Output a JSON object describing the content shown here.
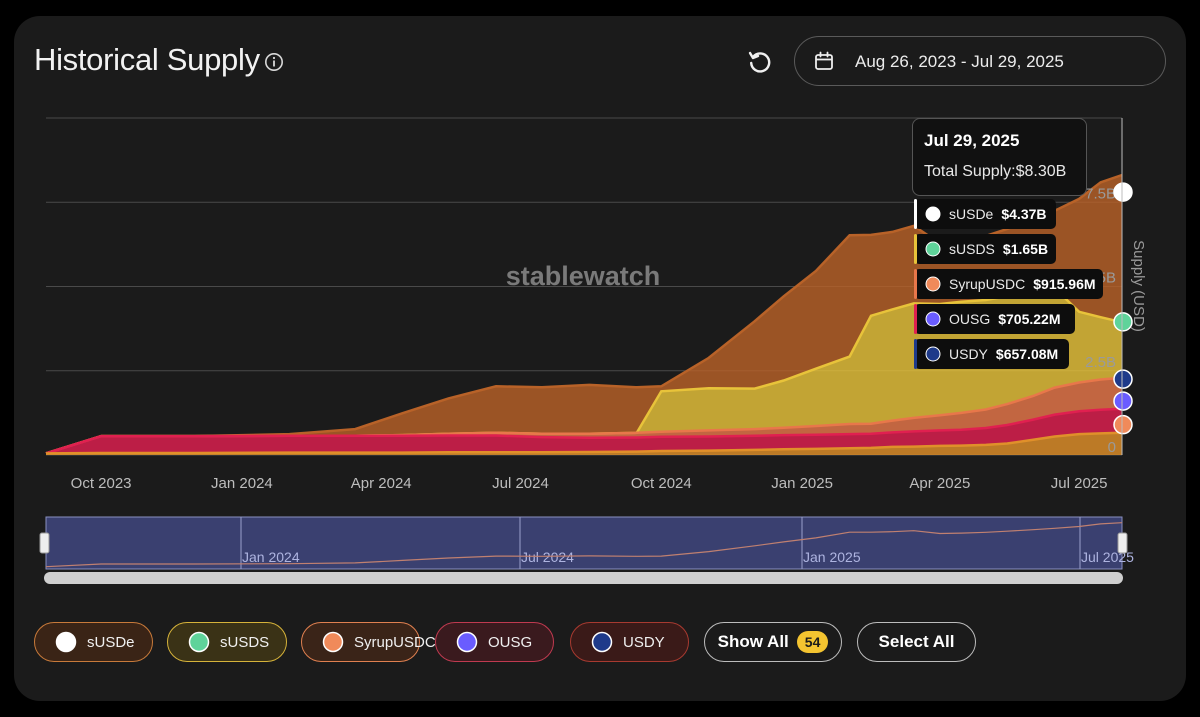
{
  "header": {
    "title": "Historical Supply",
    "date_range": "Aug 26, 2023 - Jul 29, 2025"
  },
  "watermark": "stablewatch",
  "tooltip": {
    "date": "Jul 29, 2025",
    "total_label": "Total Supply:",
    "total_value": "$8.30B",
    "items": [
      {
        "name": "sUSDe",
        "value": "$4.37B"
      },
      {
        "name": "sUSDS",
        "value": "$1.65B"
      },
      {
        "name": "SyrupUSDC",
        "value": "$915.96M"
      },
      {
        "name": "OUSG",
        "value": "$705.22M"
      },
      {
        "name": "USDY",
        "value": "$657.08M"
      }
    ]
  },
  "legend": {
    "items": [
      "sUSDe",
      "sUSDS",
      "SyrupUSDC",
      "OUSG",
      "USDY"
    ],
    "show_all_label": "Show All",
    "show_all_count": "54",
    "select_all_label": "Select All"
  },
  "chart_data": {
    "type": "area",
    "stacked": true,
    "ylabel": "Supply (USD)",
    "yticks": [
      0,
      2.5,
      5,
      7.5
    ],
    "ytick_labels": [
      "0",
      "2.5B",
      "5B",
      "7.5B"
    ],
    "ylim": [
      0,
      10
    ],
    "y_unit": "billions USD",
    "xlim": [
      "2023-08-26",
      "2025-07-29"
    ],
    "xticks": [
      "2023-10-01",
      "2024-01-01",
      "2024-04-01",
      "2024-07-01",
      "2024-10-01",
      "2025-01-01",
      "2025-04-01",
      "2025-07-01"
    ],
    "xtick_labels": [
      "Oct 2023",
      "Jan 2024",
      "Apr 2024",
      "Jul 2024",
      "Oct 2024",
      "Jan 2025",
      "Apr 2025",
      "Jul 2025"
    ],
    "x": [
      "2023-08-26",
      "2023-10-01",
      "2023-12-01",
      "2024-02-01",
      "2024-03-15",
      "2024-04-15",
      "2024-05-15",
      "2024-06-15",
      "2024-07-15",
      "2024-08-15",
      "2024-09-15",
      "2024-10-01",
      "2024-11-01",
      "2024-12-01",
      "2024-12-20",
      "2025-01-10",
      "2025-02-01",
      "2025-02-15",
      "2025-03-01",
      "2025-03-15",
      "2025-04-01",
      "2025-04-15",
      "2025-05-01",
      "2025-05-15",
      "2025-06-01",
      "2025-06-15",
      "2025-07-01",
      "2025-07-15",
      "2025-07-29"
    ],
    "series": [
      {
        "name": "USDY",
        "color": "#e0902a",
        "values": [
          0.05,
          0.06,
          0.06,
          0.07,
          0.07,
          0.07,
          0.08,
          0.08,
          0.08,
          0.09,
          0.1,
          0.12,
          0.13,
          0.15,
          0.17,
          0.18,
          0.2,
          0.21,
          0.24,
          0.25,
          0.27,
          0.28,
          0.3,
          0.34,
          0.45,
          0.55,
          0.62,
          0.64,
          0.66
        ]
      },
      {
        "name": "OUSG",
        "color": "#e02050",
        "values": [
          0.0,
          0.5,
          0.5,
          0.5,
          0.5,
          0.5,
          0.5,
          0.5,
          0.45,
          0.42,
          0.42,
          0.42,
          0.42,
          0.42,
          0.42,
          0.42,
          0.42,
          0.42,
          0.43,
          0.45,
          0.46,
          0.47,
          0.5,
          0.55,
          0.6,
          0.65,
          0.68,
          0.7,
          0.71
        ]
      },
      {
        "name": "SyrupUSDC",
        "color": "#e8774a",
        "values": [
          0.0,
          0.0,
          0.0,
          0.0,
          0.0,
          0.02,
          0.05,
          0.08,
          0.1,
          0.12,
          0.14,
          0.15,
          0.18,
          0.2,
          0.22,
          0.26,
          0.3,
          0.3,
          0.35,
          0.4,
          0.45,
          0.5,
          0.55,
          0.62,
          0.7,
          0.8,
          0.85,
          0.9,
          0.92
        ]
      },
      {
        "name": "sUSDS",
        "color": "#e8c33a",
        "values": [
          0.0,
          0.0,
          0.0,
          0.0,
          0.0,
          0.0,
          0.0,
          0.0,
          0.0,
          0.0,
          0.0,
          1.2,
          1.25,
          1.2,
          1.4,
          1.7,
          2.0,
          3.2,
          3.3,
          3.4,
          3.3,
          3.3,
          3.25,
          3.2,
          3.1,
          2.95,
          2.1,
          1.85,
          1.65
        ]
      },
      {
        "name": "sUSDe",
        "color": "#b86228",
        "values": [
          0.0,
          0.0,
          0.0,
          0.05,
          0.2,
          0.65,
          1.05,
          1.38,
          1.38,
          1.45,
          1.35,
          0.15,
          0.9,
          2.0,
          2.5,
          2.9,
          3.6,
          2.4,
          2.3,
          2.3,
          1.8,
          1.8,
          1.9,
          2.0,
          2.15,
          2.3,
          3.35,
          4.0,
          4.37
        ]
      }
    ]
  },
  "navigator": {
    "tick_labels": [
      "Jan 2024",
      "Jul 2024",
      "Jan 2025",
      "Jul 2025"
    ]
  }
}
